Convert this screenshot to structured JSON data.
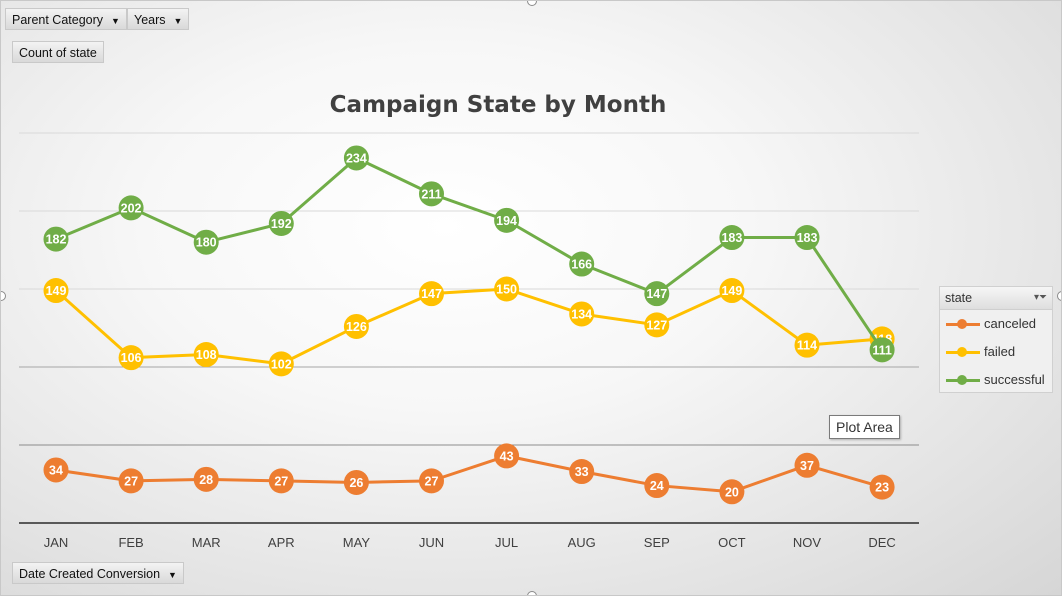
{
  "pivot_buttons": {
    "parent_category": "Parent Category",
    "years": "Years",
    "count_of_state": "Count of state",
    "date_created": "Date Created Conversion"
  },
  "tooltip": "Plot Area",
  "legend": {
    "header": "state",
    "items": [
      "canceled",
      "failed",
      "successful"
    ]
  },
  "chart_data": {
    "type": "line",
    "title": "Campaign State by Month",
    "categories": [
      "JAN",
      "FEB",
      "MAR",
      "APR",
      "MAY",
      "JUN",
      "JUL",
      "AUG",
      "SEP",
      "OCT",
      "NOV",
      "DEC"
    ],
    "series": [
      {
        "name": "canceled",
        "color": "#ED7D31",
        "values": [
          34,
          27,
          28,
          27,
          26,
          27,
          43,
          33,
          24,
          20,
          37,
          23
        ]
      },
      {
        "name": "failed",
        "color": "#FFC000",
        "values": [
          149,
          106,
          108,
          102,
          126,
          147,
          150,
          134,
          127,
          149,
          114,
          118
        ]
      },
      {
        "name": "successful",
        "color": "#70AD47",
        "values": [
          182,
          202,
          180,
          192,
          234,
          211,
          194,
          166,
          147,
          183,
          183,
          111
        ]
      }
    ],
    "ylim": [
      0,
      250
    ],
    "grid": true,
    "legend_position": "right"
  }
}
